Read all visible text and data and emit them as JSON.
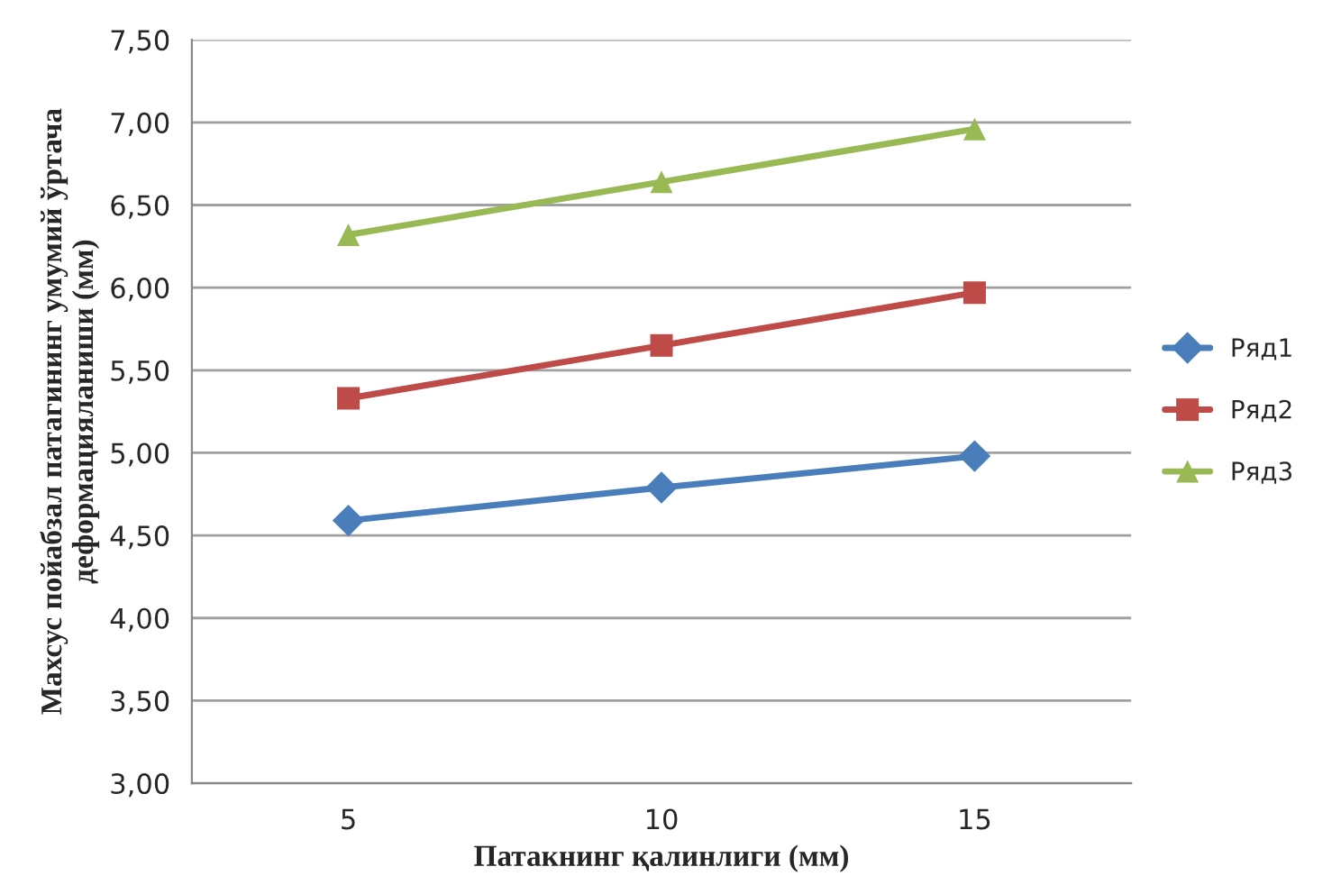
{
  "chart_data": {
    "type": "line",
    "xlabel": "Патакнинг қалинлиги (мм)",
    "ylabel": "Махсус пойабзал патагининг умумий ўртача деформацияланиши (мм)",
    "categories": [
      "5",
      "10",
      "15"
    ],
    "series": [
      {
        "name": "Ряд1",
        "color": "#4a7ebb",
        "marker": "diamond",
        "values": [
          4.59,
          4.79,
          4.98
        ]
      },
      {
        "name": "Ряд2",
        "color": "#be4b48",
        "marker": "square",
        "values": [
          5.33,
          5.65,
          5.97
        ]
      },
      {
        "name": "Ряд3",
        "color": "#98b954",
        "marker": "triangle",
        "values": [
          6.32,
          6.64,
          6.96
        ]
      }
    ],
    "ylim": [
      3.0,
      7.5
    ],
    "yticks": [
      {
        "value": 3.0,
        "label": "3,00"
      },
      {
        "value": 3.5,
        "label": "3,50"
      },
      {
        "value": 4.0,
        "label": "4,00"
      },
      {
        "value": 4.5,
        "label": "4,50"
      },
      {
        "value": 5.0,
        "label": "5,00"
      },
      {
        "value": 5.5,
        "label": "5,50"
      },
      {
        "value": 6.0,
        "label": "6,00"
      },
      {
        "value": 6.5,
        "label": "6,50"
      },
      {
        "value": 7.0,
        "label": "7,00"
      },
      {
        "value": 7.5,
        "label": "7,50"
      }
    ],
    "grid": "y",
    "legend": "right",
    "line_style": "solid"
  }
}
